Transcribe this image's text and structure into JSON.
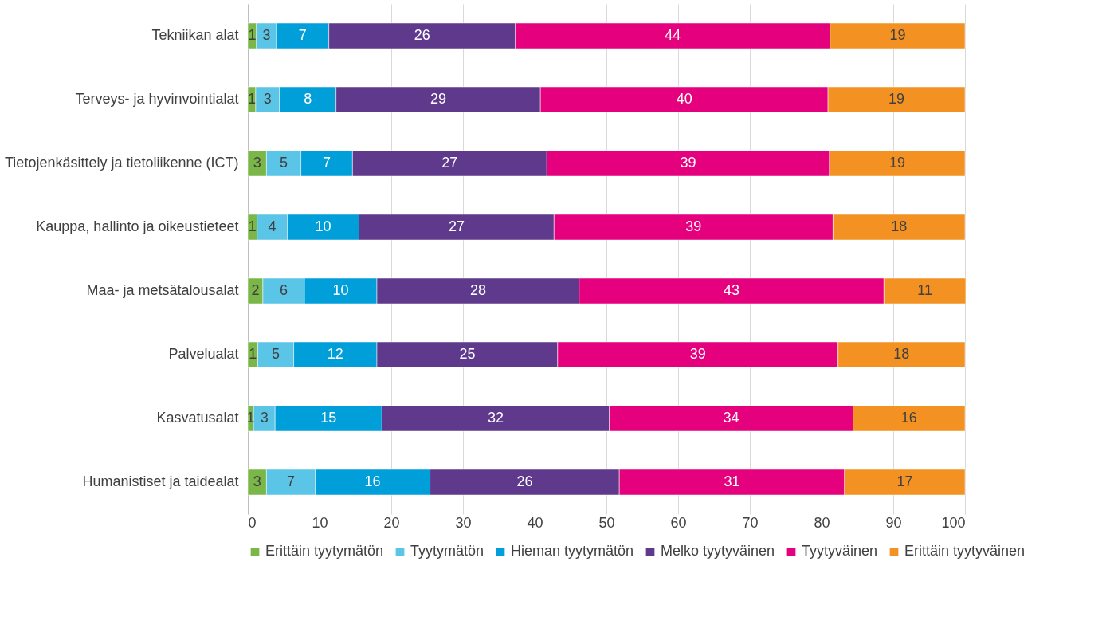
{
  "chart_data": {
    "type": "bar",
    "orientation": "horizontal",
    "stacked": true,
    "categories": [
      "Tekniikan alat",
      "Terveys- ja hyvinvointialat",
      "Tietojenkäsittely ja tietoliikenne (ICT)",
      "Kauppa, hallinto ja oikeustieteet",
      "Maa- ja metsätalousalat",
      "Palvelualat",
      "Kasvatusalat",
      "Humanistiset ja taidealat"
    ],
    "series": [
      {
        "name": "Erittäin tyytymätön",
        "color": "#7ab648",
        "values": [
          1.2,
          1.1,
          2.6,
          1.3,
          2.1,
          1.4,
          0.8,
          2.6
        ],
        "value_labels": [
          "1",
          "1",
          "3",
          "1",
          "2",
          "1",
          "1",
          "3"
        ]
      },
      {
        "name": "Tyytymätön",
        "color": "#5bc5e8",
        "values": [
          2.8,
          3.3,
          4.8,
          4.2,
          5.8,
          5.0,
          3.0,
          6.8
        ],
        "value_labels": [
          "3",
          "3",
          "5",
          "4",
          "6",
          "5",
          "3",
          "7"
        ]
      },
      {
        "name": "Hieman tyytymätön",
        "color": "#009fda",
        "values": [
          7.3,
          7.9,
          7.2,
          10.0,
          10.1,
          11.6,
          14.9,
          16.0
        ],
        "value_labels": [
          "7",
          "8",
          "7",
          "10",
          "10",
          "12",
          "15",
          "16"
        ]
      },
      {
        "name": "Melko tyytyväinen",
        "color": "#5f3a8c",
        "values": [
          26.0,
          28.5,
          27.1,
          27.2,
          28.2,
          25.2,
          31.7,
          26.4
        ],
        "value_labels": [
          "26",
          "29",
          "27",
          "27",
          "28",
          "25",
          "32",
          "26"
        ]
      },
      {
        "name": "Tyytyväinen",
        "color": "#e5007e",
        "values": [
          43.9,
          40.1,
          39.4,
          38.9,
          42.5,
          39.1,
          34.0,
          31.4
        ],
        "value_labels": [
          "44",
          "40",
          "39",
          "39",
          "43",
          "39",
          "34",
          "31"
        ]
      },
      {
        "name": "Erittäin tyytyväinen",
        "color": "#f39222",
        "values": [
          18.8,
          19.1,
          18.9,
          18.4,
          11.4,
          17.7,
          15.6,
          16.8
        ],
        "value_labels": [
          "19",
          "19",
          "19",
          "18",
          "11",
          "18",
          "16",
          "17"
        ]
      }
    ],
    "xlim": [
      0,
      100
    ],
    "xticks": [
      0,
      10,
      20,
      30,
      40,
      50,
      60,
      70,
      80,
      90,
      100
    ],
    "grid": "x",
    "legend": "bottom"
  }
}
